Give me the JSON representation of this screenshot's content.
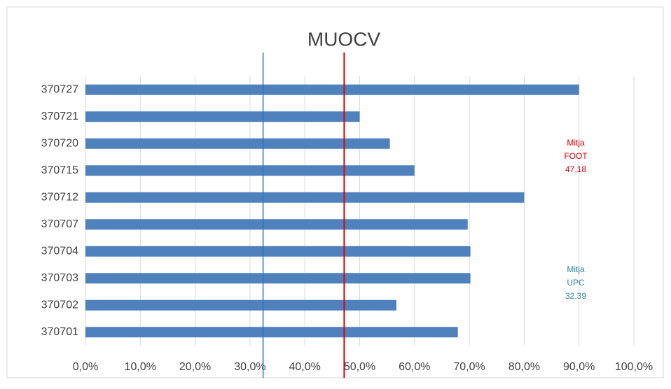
{
  "chart_data": {
    "type": "bar",
    "orientation": "horizontal",
    "title": "MUOCV",
    "categories": [
      "370727",
      "370721",
      "370720",
      "370715",
      "370712",
      "370707",
      "370704",
      "370703",
      "370702",
      "370701"
    ],
    "values": [
      90,
      50,
      55.5,
      60,
      80,
      69.7,
      70.2,
      70.2,
      56.7,
      67.9
    ],
    "color": "#4f81bd",
    "xlim": [
      0,
      100
    ],
    "xticks": [
      {
        "value": 0,
        "label": "0,0%"
      },
      {
        "value": 10,
        "label": "10,0%"
      },
      {
        "value": 20,
        "label": "20,0%"
      },
      {
        "value": 30,
        "label": "30,0%"
      },
      {
        "value": 40,
        "label": "40,0%"
      },
      {
        "value": 50,
        "label": "50,0%"
      },
      {
        "value": 60,
        "label": "60,0%"
      },
      {
        "value": 70,
        "label": "70,0%"
      },
      {
        "value": 80,
        "label": "80,0%"
      },
      {
        "value": 90,
        "label": "90,0%"
      },
      {
        "value": 100,
        "label": "100,0%"
      }
    ],
    "grid": true,
    "reference_lines": [
      {
        "value": 32.39,
        "color": "#2e75b6",
        "text_color": "#31859c",
        "lines": [
          "Mitja",
          "UPC",
          "32,39"
        ]
      },
      {
        "value": 47.18,
        "color": "#e00000",
        "text_color": "#e00000",
        "lines": [
          "Mitja",
          "FOOT",
          "47,18"
        ]
      }
    ]
  }
}
